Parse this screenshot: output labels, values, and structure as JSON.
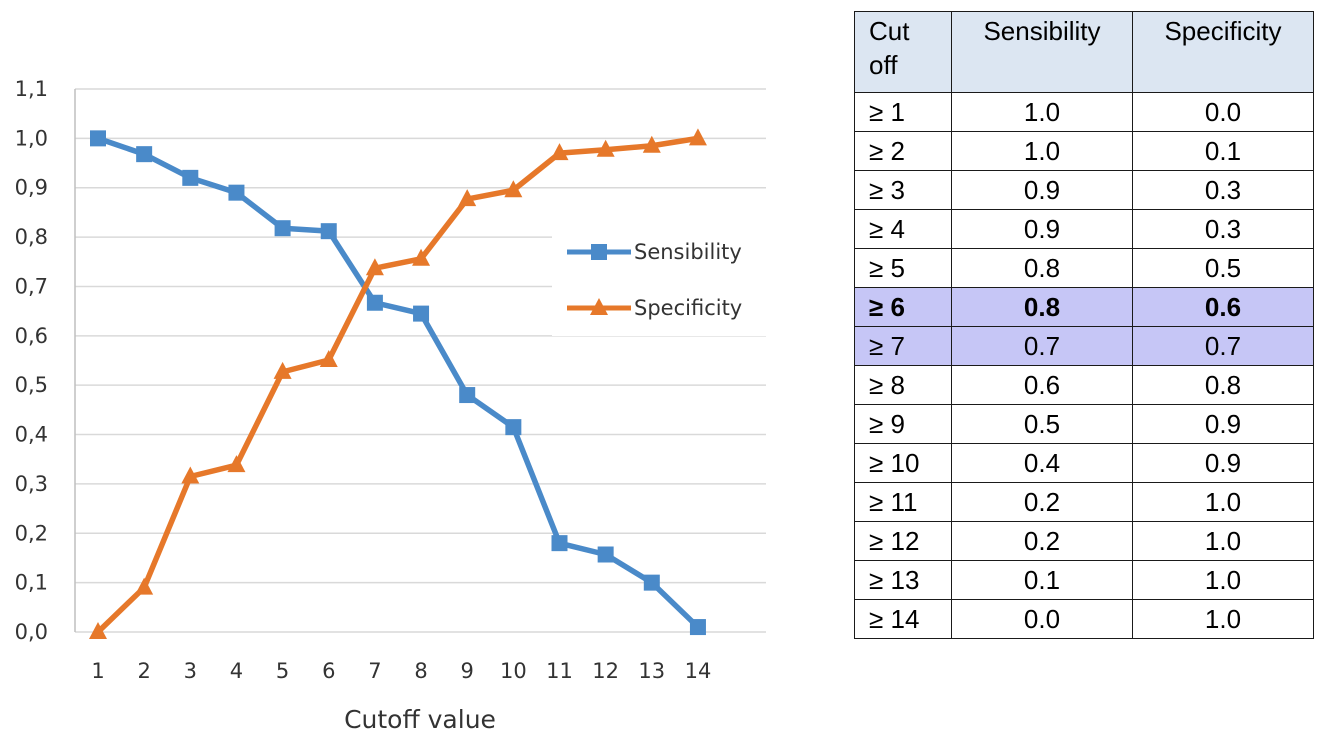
{
  "chart_data": {
    "type": "line",
    "title": "",
    "xlabel": "Cutoff value",
    "ylabel": "",
    "x": [
      1,
      2,
      3,
      4,
      5,
      6,
      7,
      8,
      9,
      10,
      11,
      12,
      13,
      14
    ],
    "ylim": [
      0,
      1.1
    ],
    "yticks": [
      "0,0",
      "0,1",
      "0,2",
      "0,3",
      "0,4",
      "0,5",
      "0,6",
      "0,7",
      "0,8",
      "0,9",
      "1,0",
      "1,1"
    ],
    "grid": "horizontal",
    "legend": "right",
    "series": [
      {
        "name": "Sensibility",
        "marker": "square",
        "color": "#4a8ac9",
        "values": [
          1.0,
          0.968,
          0.92,
          0.89,
          0.818,
          0.812,
          0.667,
          0.645,
          0.48,
          0.415,
          0.18,
          0.157,
          0.1,
          0.01
        ]
      },
      {
        "name": "Specificity",
        "marker": "triangle",
        "color": "#e6782a",
        "values": [
          0.0,
          0.09,
          0.315,
          0.338,
          0.527,
          0.551,
          0.737,
          0.756,
          0.877,
          0.895,
          0.97,
          0.977,
          0.985,
          1.0
        ]
      }
    ]
  },
  "table": {
    "headers": {
      "cutoff_line1": "Cut",
      "cutoff_line2": "off",
      "sensibility": "Sensibility",
      "specificity": "Specificity"
    },
    "rows": [
      {
        "cutoff": "≥ 1",
        "sensibility": "1.0",
        "specificity": "0.0"
      },
      {
        "cutoff": "≥ 2",
        "sensibility": "1.0",
        "specificity": "0.1"
      },
      {
        "cutoff": "≥ 3",
        "sensibility": "0.9",
        "specificity": "0.3"
      },
      {
        "cutoff": "≥ 4",
        "sensibility": "0.9",
        "specificity": "0.3"
      },
      {
        "cutoff": "≥ 5",
        "sensibility": "0.8",
        "specificity": "0.5"
      },
      {
        "cutoff": "≥ 6",
        "sensibility": "0.8",
        "specificity": "0.6",
        "highlighted": true,
        "bold": true
      },
      {
        "cutoff": "≥ 7",
        "sensibility": "0.7",
        "specificity": "0.7",
        "highlighted": true
      },
      {
        "cutoff": "≥ 8",
        "sensibility": "0.6",
        "specificity": "0.8"
      },
      {
        "cutoff": "≥ 9",
        "sensibility": "0.5",
        "specificity": "0.9"
      },
      {
        "cutoff": "≥ 10",
        "sensibility": "0.4",
        "specificity": "0.9"
      },
      {
        "cutoff": "≥ 11",
        "sensibility": "0.2",
        "specificity": "1.0"
      },
      {
        "cutoff": "≥ 12",
        "sensibility": "0.2",
        "specificity": "1.0"
      },
      {
        "cutoff": "≥ 13",
        "sensibility": "0.1",
        "specificity": "1.0"
      },
      {
        "cutoff": "≥ 14",
        "sensibility": "0.0",
        "specificity": "1.0"
      }
    ],
    "highlight_color": "#c6c6f6",
    "header_color": "#dce6f2"
  }
}
